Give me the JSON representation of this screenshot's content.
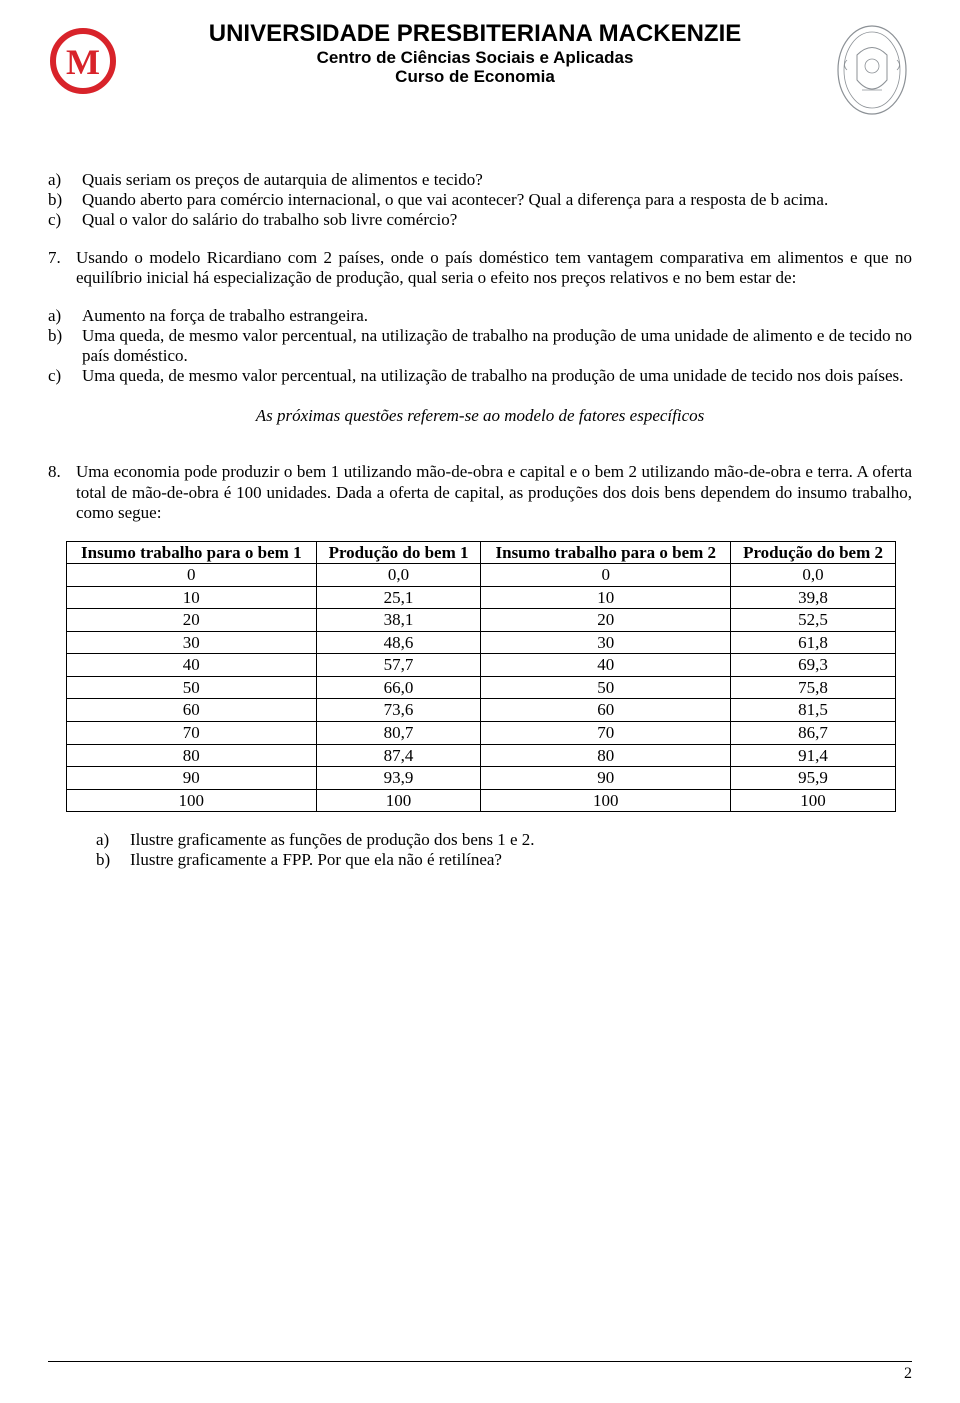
{
  "header": {
    "title": "UNIVERSIDADE PRESBITERIANA MACKENZIE",
    "sub1": "Centro de Ciências Sociais e Aplicadas",
    "sub2": "Curso de Economia"
  },
  "q6_list": {
    "a": "Quais seriam os preços de autarquia de alimentos e tecido?",
    "b": "Quando aberto para comércio internacional, o que vai acontecer? Qual a diferença para a resposta de b acima.",
    "c": "Qual o valor do salário do trabalho sob livre comércio?"
  },
  "q7": {
    "num": "7.",
    "text": "Usando o modelo Ricardiano com 2 países, onde o país doméstico tem vantagem comparativa em alimentos e que no equilíbrio inicial há especialização de produção, qual seria o efeito nos preços relativos e no bem estar de:"
  },
  "q7_list": {
    "a": "Aumento na força de trabalho estrangeira.",
    "b": "Uma queda, de mesmo valor percentual, na utilização de trabalho na produção de uma unidade de alimento e de tecido no país doméstico.",
    "c": "Uma queda, de mesmo valor percentual, na utilização de trabalho na produção de uma unidade de tecido nos dois países."
  },
  "section_note": "As próximas questões referem-se ao modelo de fatores específicos",
  "q8": {
    "num": "8.",
    "text": "Uma economia pode produzir o bem 1 utilizando mão-de-obra e capital e o bem 2 utilizando mão-de-obra e terra. A oferta total de mão-de-obra é 100 unidades. Dada a oferta de capital, as produções dos dois bens dependem do insumo trabalho, como segue:"
  },
  "table": {
    "columns": [
      "Insumo trabalho para o bem 1",
      "Produção do bem 1",
      "Insumo trabalho para o bem 2",
      "Produção do bem 2"
    ],
    "rows": [
      [
        "0",
        "0,0",
        "0",
        "0,0"
      ],
      [
        "10",
        "25,1",
        "10",
        "39,8"
      ],
      [
        "20",
        "38,1",
        "20",
        "52,5"
      ],
      [
        "30",
        "48,6",
        "30",
        "61,8"
      ],
      [
        "40",
        "57,7",
        "40",
        "69,3"
      ],
      [
        "50",
        "66,0",
        "50",
        "75,8"
      ],
      [
        "60",
        "73,6",
        "60",
        "81,5"
      ],
      [
        "70",
        "80,7",
        "70",
        "86,7"
      ],
      [
        "80",
        "87,4",
        "80",
        "91,4"
      ],
      [
        "90",
        "93,9",
        "90",
        "95,9"
      ],
      [
        "100",
        "100",
        "100",
        "100"
      ]
    ]
  },
  "q8_list": {
    "a": "Ilustre graficamente as funções de produção dos bens 1 e 2.",
    "b": "Ilustre graficamente a FPP. Por que ela não é retilínea?"
  },
  "page_number": "2",
  "markers": {
    "a": "a)",
    "b": "b)",
    "c": "c)"
  },
  "colors": {
    "logo_red": "#d8232a",
    "crest_gray": "#8c9196",
    "text": "#000000",
    "background": "#ffffff",
    "border": "#000000"
  }
}
